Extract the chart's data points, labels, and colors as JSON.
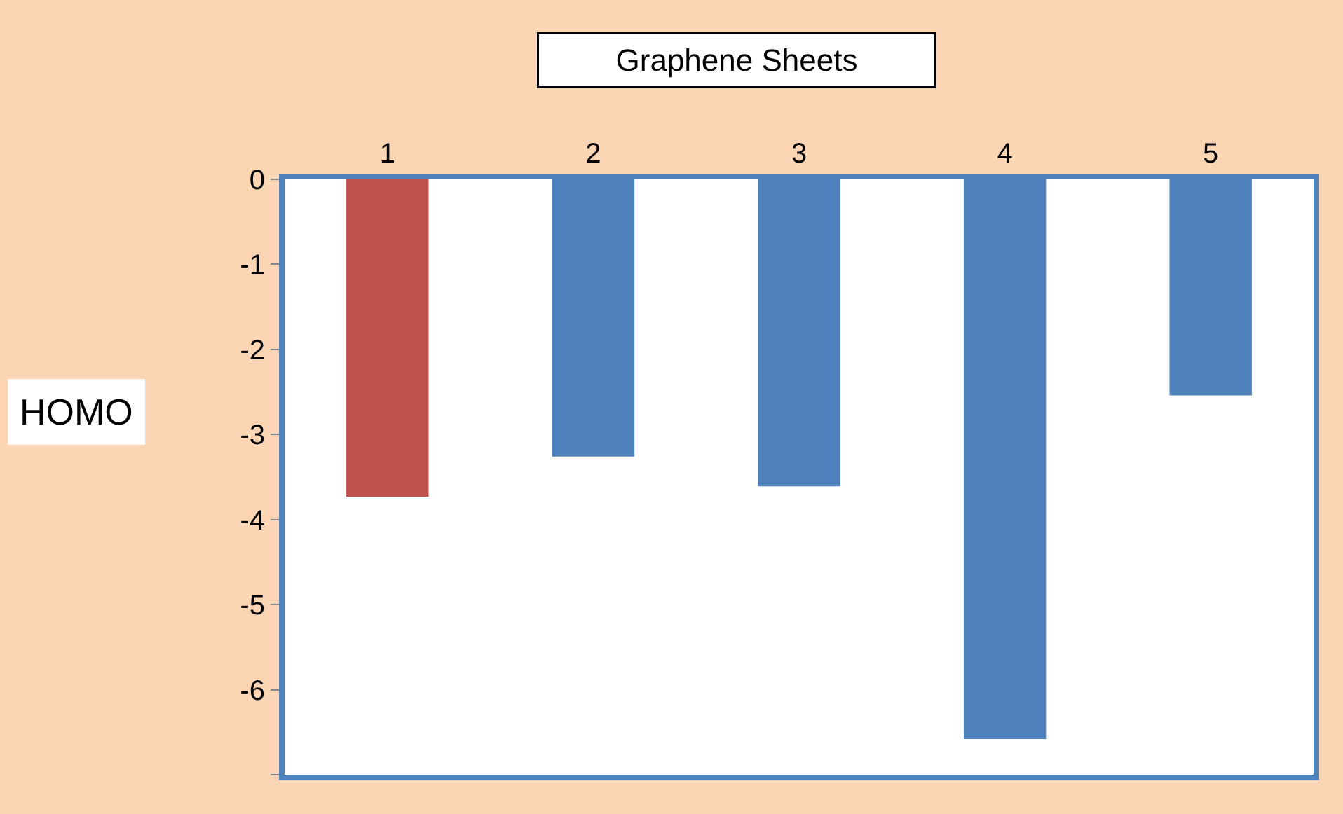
{
  "chart_data": {
    "type": "bar",
    "xlabel": "Graphene Sheets",
    "ylabel": "HOMO",
    "categories": [
      "1",
      "2",
      "3",
      "4",
      "5"
    ],
    "values": [
      -3.73,
      -3.26,
      -3.61,
      -6.58,
      -2.54
    ],
    "colors": [
      "#c0504d",
      "#4f81bd",
      "#4f81bd",
      "#4f81bd",
      "#4f81bd"
    ],
    "ylim": [
      -7,
      0
    ],
    "yticks": [
      0,
      -1,
      -2,
      -3,
      -4,
      -5,
      -6,
      {
        "value": -7,
        "label": null
      }
    ],
    "grid": false
  }
}
